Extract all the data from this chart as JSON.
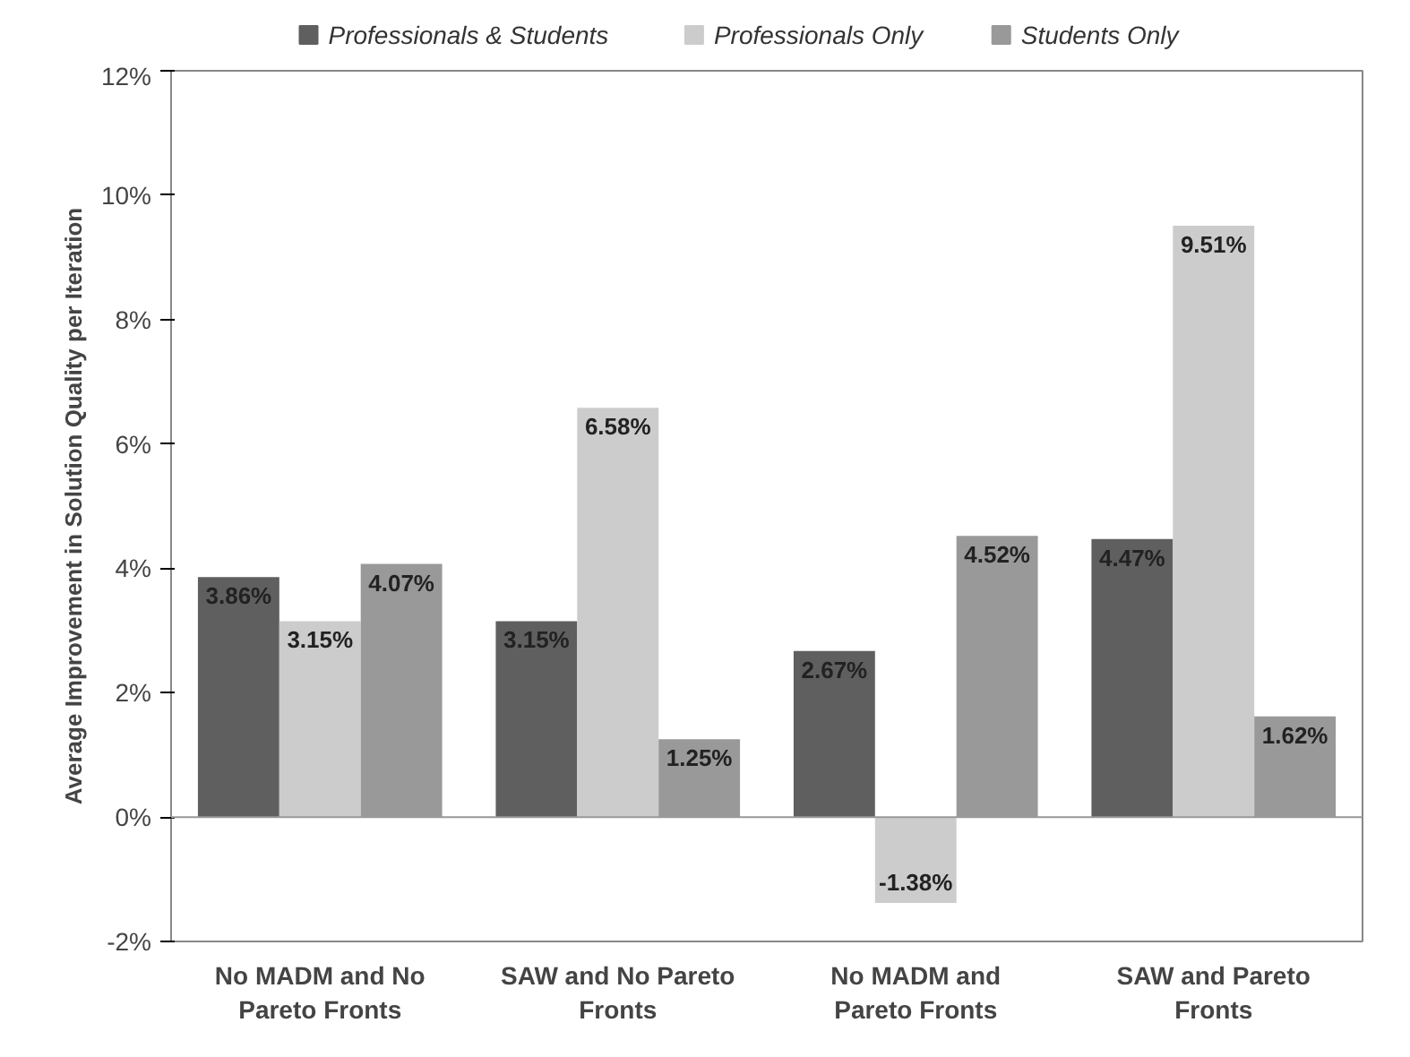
{
  "chart_data": {
    "type": "bar",
    "ylabel": "Average Improvement in Solution Quality per Iteration",
    "categories": [
      "No MADM and No Pareto Fronts",
      "SAW and No Pareto Fronts",
      "No MADM and Pareto Fronts",
      "SAW and Pareto Fronts"
    ],
    "series": [
      {
        "name": "Professionals & Students",
        "color": "#5f5f5f",
        "values": [
          3.86,
          3.15,
          2.67,
          4.47
        ],
        "value_labels": [
          "3.86%",
          "3.15%",
          "2.67%",
          "4.47%"
        ]
      },
      {
        "name": "Professionals Only",
        "color": "#cccccc",
        "values": [
          3.15,
          6.58,
          -1.38,
          9.51
        ],
        "value_labels": [
          "3.15%",
          "6.58%",
          "-1.38%",
          "9.51%"
        ]
      },
      {
        "name": "Students Only",
        "color": "#999999",
        "values": [
          4.07,
          1.25,
          4.52,
          1.62
        ],
        "value_labels": [
          "4.07%",
          "1.25%",
          "4.52%",
          "1.62%"
        ]
      }
    ],
    "ylim": [
      -2,
      12
    ],
    "yticks": [
      {
        "value": -2,
        "label": "-2%"
      },
      {
        "value": 0,
        "label": "0%"
      },
      {
        "value": 2,
        "label": "2%"
      },
      {
        "value": 4,
        "label": "4%"
      },
      {
        "value": 6,
        "label": "6%"
      },
      {
        "value": 8,
        "label": "8%"
      },
      {
        "value": 10,
        "label": "10%"
      },
      {
        "value": 12,
        "label": "12%"
      }
    ],
    "ref_lines": [
      {
        "axis": "y",
        "value": 0,
        "color": "#999999"
      }
    ],
    "grid": false,
    "legend": "top"
  }
}
